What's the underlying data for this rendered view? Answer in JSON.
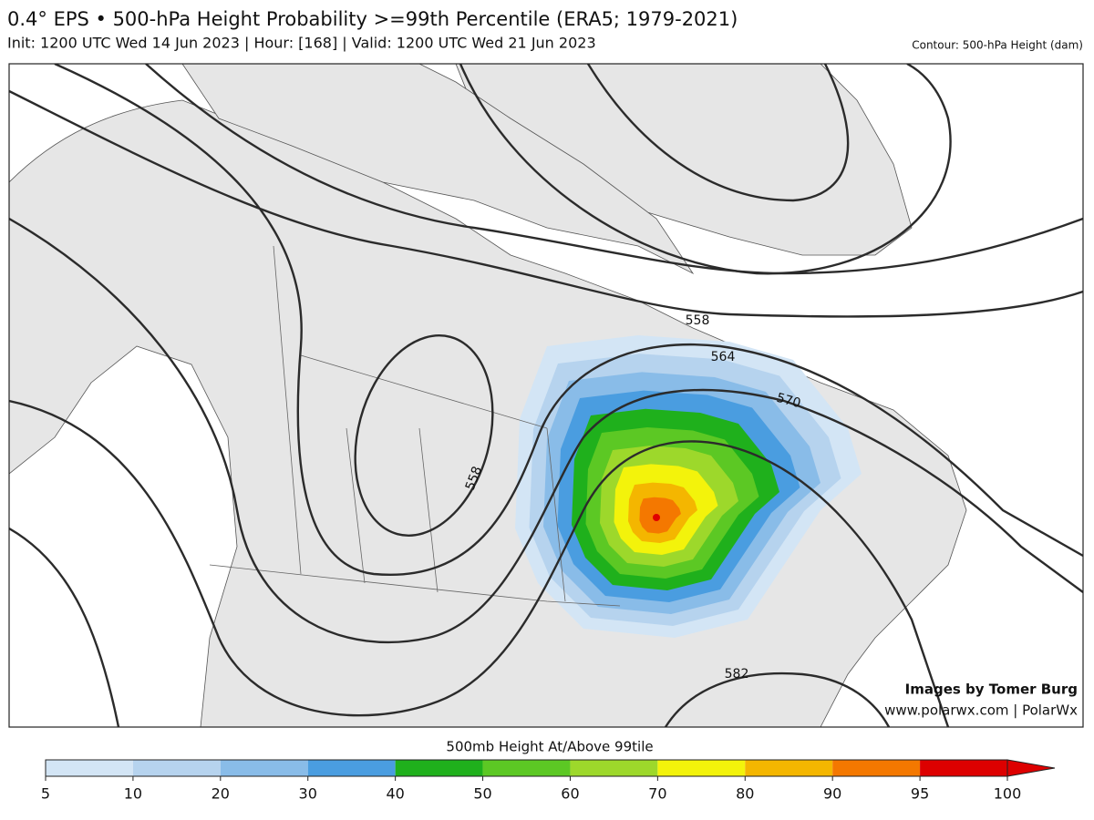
{
  "header": {
    "title": "0.4° EPS • 500-hPa Height Probability >=99th Percentile (ERA5; 1979-2021)",
    "subtitle": "Init: 1200 UTC Wed 14 Jun 2023 | Hour: [168] | Valid: 1200 UTC Wed 21 Jun 2023",
    "contour_note": "Contour: 500-hPa Height (dam)"
  },
  "map": {
    "contour_labels": [
      "558",
      "564",
      "570",
      "558",
      "582"
    ],
    "credits": [
      "Images by Tomer Burg",
      "www.polarwx.com | PolarWx"
    ]
  },
  "colorbar": {
    "label": "500mb Height At/Above 99tile",
    "ticks": [
      5,
      10,
      20,
      30,
      40,
      50,
      60,
      70,
      80,
      90,
      95,
      100
    ],
    "colors": [
      "#d3e5f5",
      "#b6d3ee",
      "#89bce8",
      "#4a9de0",
      "#1fb01c",
      "#5cc824",
      "#9dd82b",
      "#f3f30b",
      "#f4b600",
      "#f47800",
      "#dd0000"
    ]
  }
}
